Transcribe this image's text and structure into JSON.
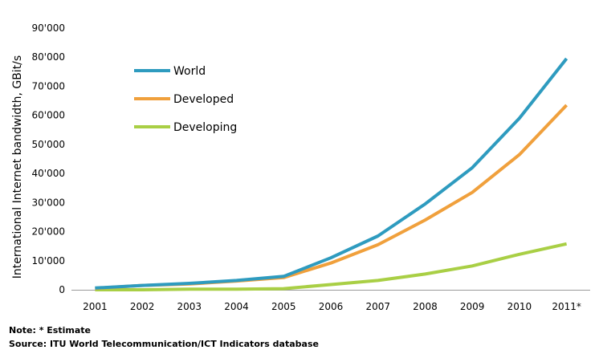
{
  "chart_data": {
    "type": "line",
    "ylabel": "International Internet bandwidth, GBit/s",
    "categories": [
      "2001",
      "2002",
      "2003",
      "2004",
      "2005",
      "2006",
      "2007",
      "2008",
      "2009",
      "2010",
      "2011*"
    ],
    "ylim": [
      0,
      90000
    ],
    "yticks": [
      0,
      10000,
      20000,
      30000,
      40000,
      50000,
      60000,
      70000,
      80000,
      90000
    ],
    "ytick_labels": [
      "0",
      "10'000",
      "20'000",
      "30'000",
      "40'000",
      "50'000",
      "60'000",
      "70'000",
      "80'000",
      "90'000"
    ],
    "grid": false,
    "legend_position": "top-left",
    "series": [
      {
        "name": "World",
        "color": "#2E9BBF",
        "values": [
          600,
          1500,
          2200,
          3200,
          4600,
          11000,
          18500,
          29500,
          42000,
          59000,
          79500
        ]
      },
      {
        "name": "Developed",
        "color": "#F0A03C",
        "values": [
          500,
          1500,
          2000,
          3000,
          4200,
          9200,
          15500,
          24000,
          33500,
          46500,
          63500
        ]
      },
      {
        "name": "Developing",
        "color": "#A9CF45",
        "values": [
          0,
          0,
          200,
          200,
          400,
          1800,
          3200,
          5400,
          8200,
          12200,
          15800
        ]
      }
    ]
  },
  "footnotes": {
    "note": "Note: * Estimate",
    "source": "Source: ITU World Telecommunication/ICT Indicators database"
  }
}
